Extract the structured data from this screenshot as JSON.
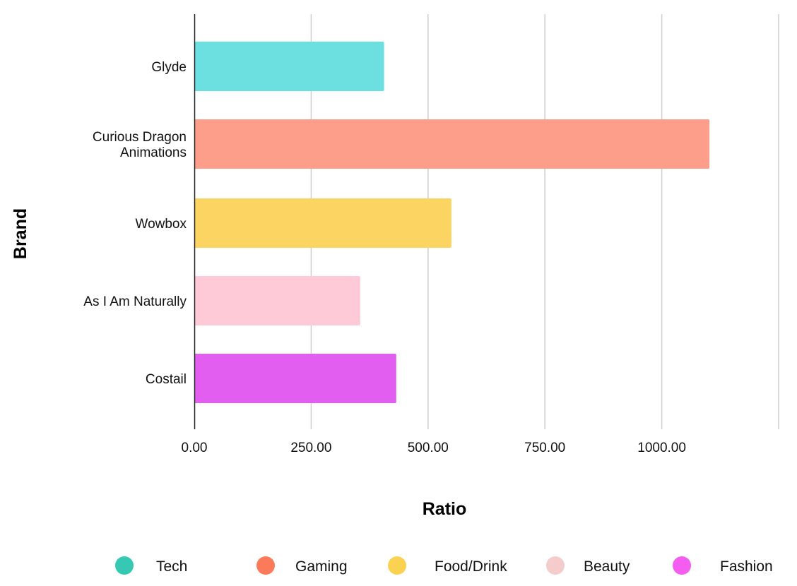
{
  "chart_data": {
    "type": "bar",
    "orientation": "horizontal",
    "xlabel": "Ratio",
    "ylabel": "Brand",
    "xlim": [
      0,
      1250
    ],
    "xticks": [
      0,
      250,
      500,
      750,
      1000
    ],
    "xtick_labels": [
      "0.00",
      "250.00",
      "500.00",
      "750.00",
      "1000.00"
    ],
    "grid": true,
    "categories": [
      {
        "label": [
          "Glyde"
        ],
        "value": 406,
        "group": "Tech",
        "color": "#6ce0e0"
      },
      {
        "label": [
          "Curious Dragon",
          "Animations"
        ],
        "value": 1102,
        "group": "Gaming",
        "color": "#fd9e8a"
      },
      {
        "label": [
          "Wowbox"
        ],
        "value": 550,
        "group": "Food/Drink",
        "color": "#fcd462"
      },
      {
        "label": [
          "As I Am Naturally"
        ],
        "value": 355,
        "group": "Beauty",
        "color": "#ffcad8"
      },
      {
        "label": [
          "Costail"
        ],
        "value": 432,
        "group": "Fashion",
        "color": "#e15ef0"
      }
    ],
    "legend_position": "bottom",
    "legend": [
      {
        "name": "Tech",
        "color": "#35c8b4"
      },
      {
        "name": "Gaming",
        "color": "#fa7a5a"
      },
      {
        "name": "Food/Drink",
        "color": "#fbd152"
      },
      {
        "name": "Beauty",
        "color": "#f4cccc"
      },
      {
        "name": "Fashion",
        "color": "#f55cf0"
      }
    ]
  }
}
